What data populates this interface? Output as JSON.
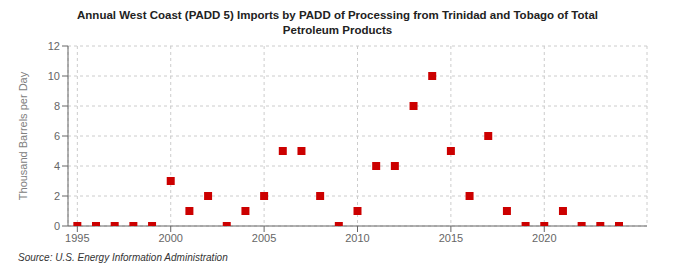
{
  "chart_data": {
    "type": "scatter",
    "title": "Annual West Coast (PADD 5) Imports by PADD of Processing from Trinidad and Tobago of Total\nPetroleum Products",
    "ylabel": "Thousand Barrels per Day",
    "annotation": "Source: U.S. Energy Information Administration",
    "x": [
      1995,
      1996,
      1997,
      1998,
      1999,
      2000,
      2001,
      2002,
      2003,
      2004,
      2005,
      2006,
      2007,
      2008,
      2009,
      2010,
      2011,
      2012,
      2013,
      2014,
      2015,
      2016,
      2017,
      2018,
      2019,
      2020,
      2021,
      2022,
      2023,
      2024
    ],
    "values": [
      0,
      0,
      0,
      0,
      0,
      3,
      1,
      2,
      0,
      1,
      2,
      5,
      5,
      2,
      0,
      1,
      4,
      4,
      8,
      10,
      5,
      2,
      6,
      1,
      0,
      0,
      1,
      0,
      0,
      0
    ],
    "color": "#cc0000",
    "marker": "square",
    "xlim": [
      1994.5,
      2025.5
    ],
    "ylim": [
      0,
      12
    ],
    "xticks": [
      1995,
      2000,
      2005,
      2010,
      2015,
      2020
    ],
    "yticks": [
      0,
      2,
      4,
      6,
      8,
      10,
      12
    ],
    "grid": true
  }
}
